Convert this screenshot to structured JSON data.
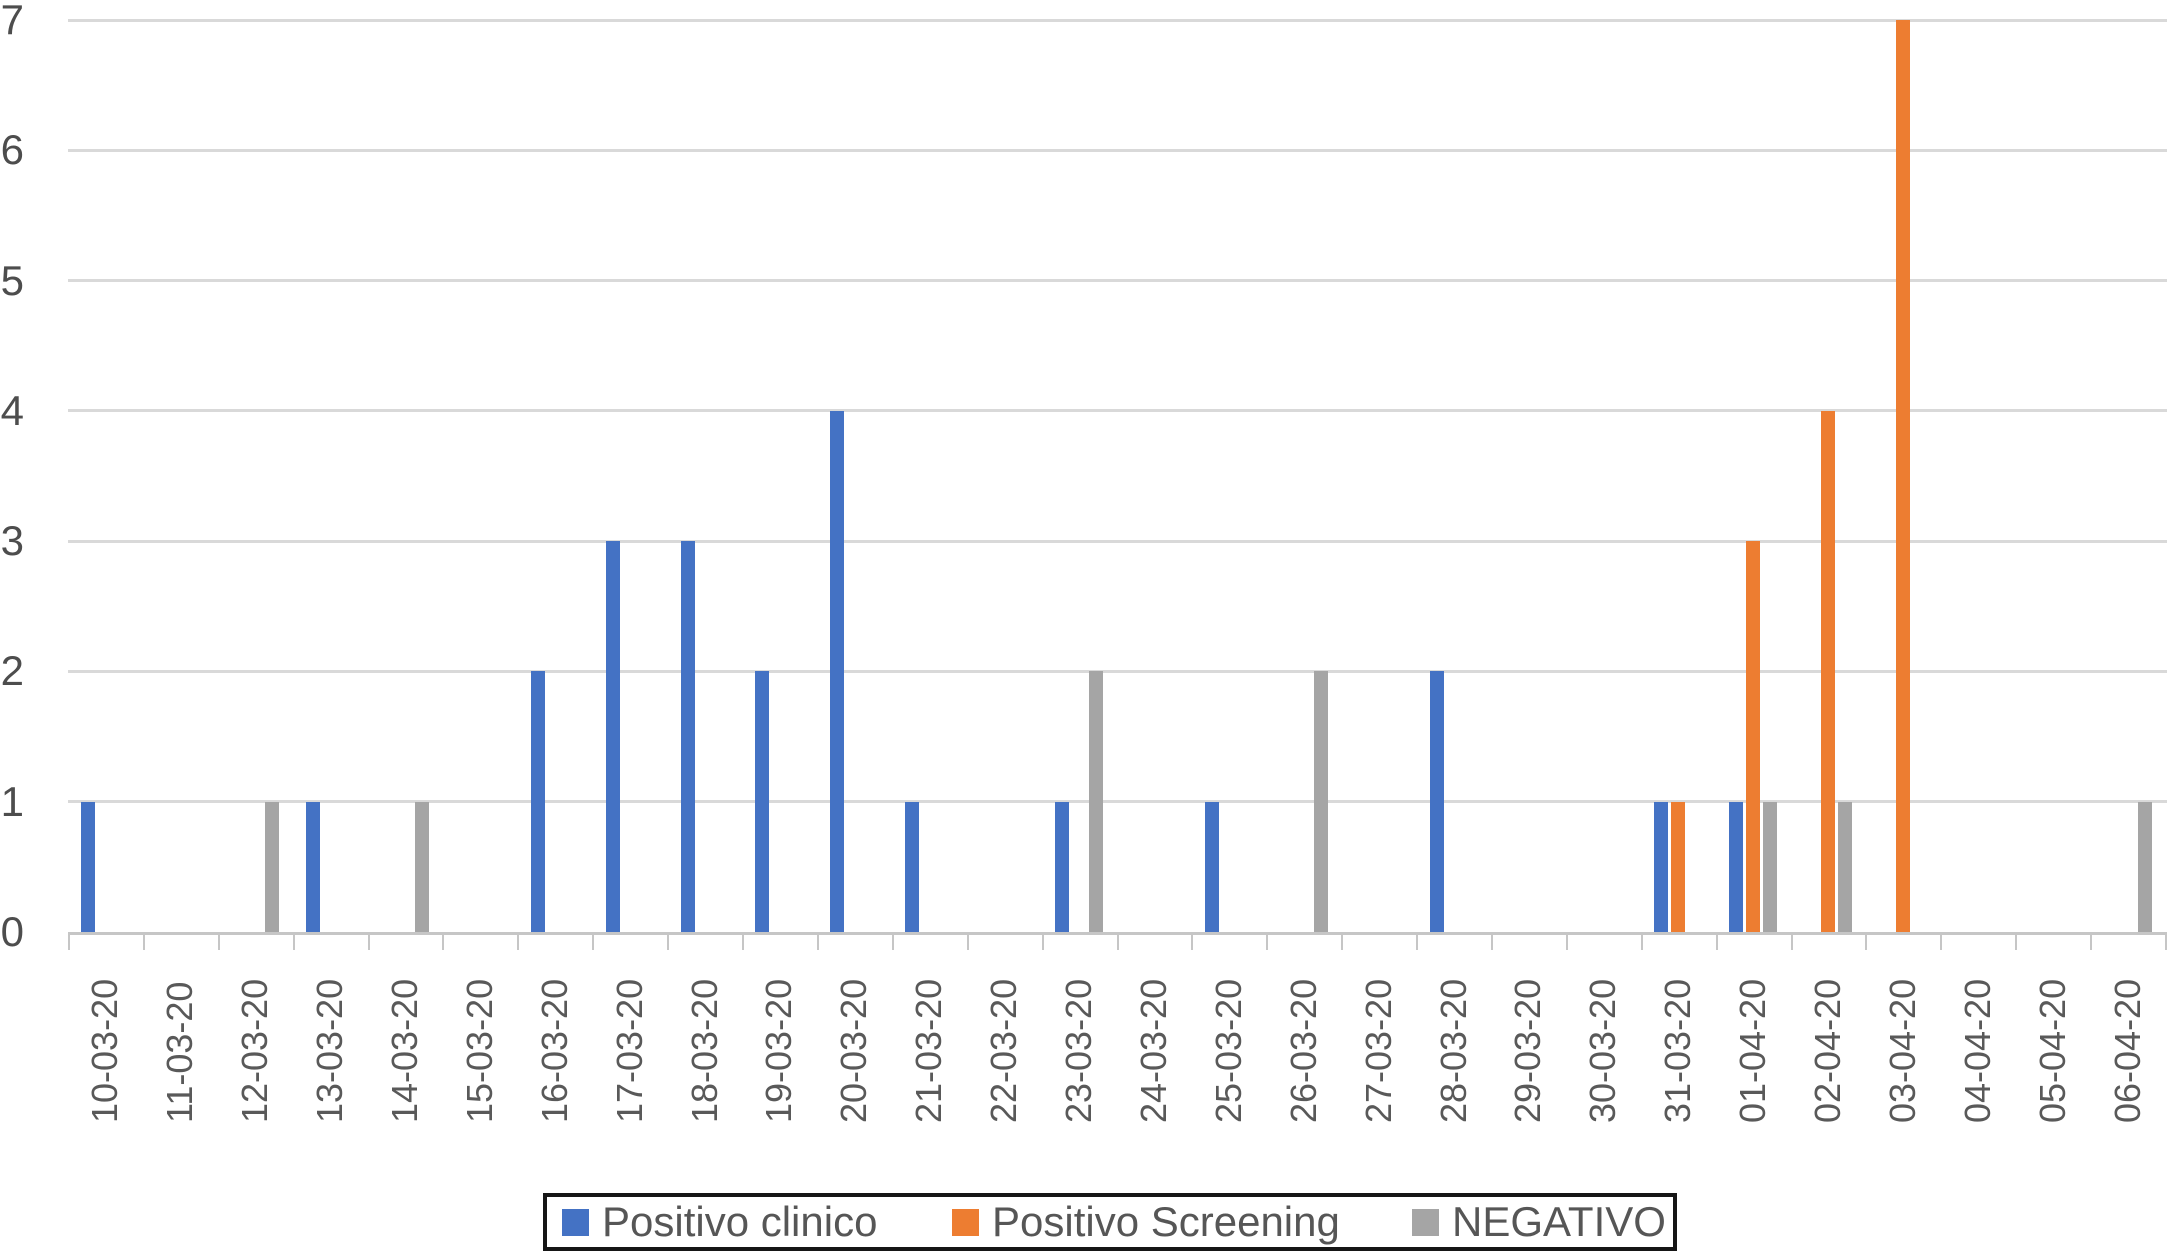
{
  "chart_data": {
    "type": "bar",
    "title": "",
    "xlabel": "",
    "ylabel": "",
    "categories": [
      "10-03-20",
      "11-03-20",
      "12-03-20",
      "13-03-20",
      "14-03-20",
      "15-03-20",
      "16-03-20",
      "17-03-20",
      "18-03-20",
      "19-03-20",
      "20-03-20",
      "21-03-20",
      "22-03-20",
      "23-03-20",
      "24-03-20",
      "25-03-20",
      "26-03-20",
      "27-03-20",
      "28-03-20",
      "29-03-20",
      "30-03-20",
      "31-03-20",
      "01-04-20",
      "02-04-20",
      "03-04-20",
      "04-04-20",
      "05-04-20",
      "06-04-20"
    ],
    "series": [
      {
        "name": "Positivo clinico",
        "color": "#4472C4",
        "values": [
          1,
          0,
          0,
          1,
          0,
          0,
          2,
          3,
          3,
          2,
          4,
          1,
          0,
          1,
          0,
          1,
          0,
          0,
          2,
          0,
          0,
          1,
          1,
          0,
          0,
          0,
          0,
          0
        ]
      },
      {
        "name": "Positivo Screening",
        "color": "#ED7D31",
        "values": [
          0,
          0,
          0,
          0,
          0,
          0,
          0,
          0,
          0,
          0,
          0,
          0,
          0,
          0,
          0,
          0,
          0,
          0,
          0,
          0,
          0,
          1,
          3,
          4,
          7,
          0,
          0,
          0
        ]
      },
      {
        "name": "NEGATIVO",
        "color": "#A5A5A5",
        "values": [
          0,
          0,
          1,
          0,
          1,
          0,
          0,
          0,
          0,
          0,
          0,
          0,
          0,
          2,
          0,
          0,
          2,
          0,
          0,
          0,
          0,
          0,
          1,
          1,
          0,
          0,
          0,
          1
        ]
      }
    ],
    "ylim": [
      0,
      7
    ],
    "yticks": [
      0,
      1,
      2,
      3,
      4,
      5,
      6,
      7
    ],
    "grid": "horizontal-only",
    "legend_position": "bottom"
  },
  "legend": {
    "items": [
      {
        "label": "Positivo clinico",
        "color": "#4472C4"
      },
      {
        "label": "Positivo Screening",
        "color": "#ED7D31"
      },
      {
        "label": "NEGATIVO",
        "color": "#A5A5A5"
      }
    ]
  },
  "colors": {
    "background": "#ffffff",
    "gridline": "#d9d9d9",
    "axis": "#c6c6c6",
    "axis_text": "#595959",
    "legend_border": "#161616"
  }
}
